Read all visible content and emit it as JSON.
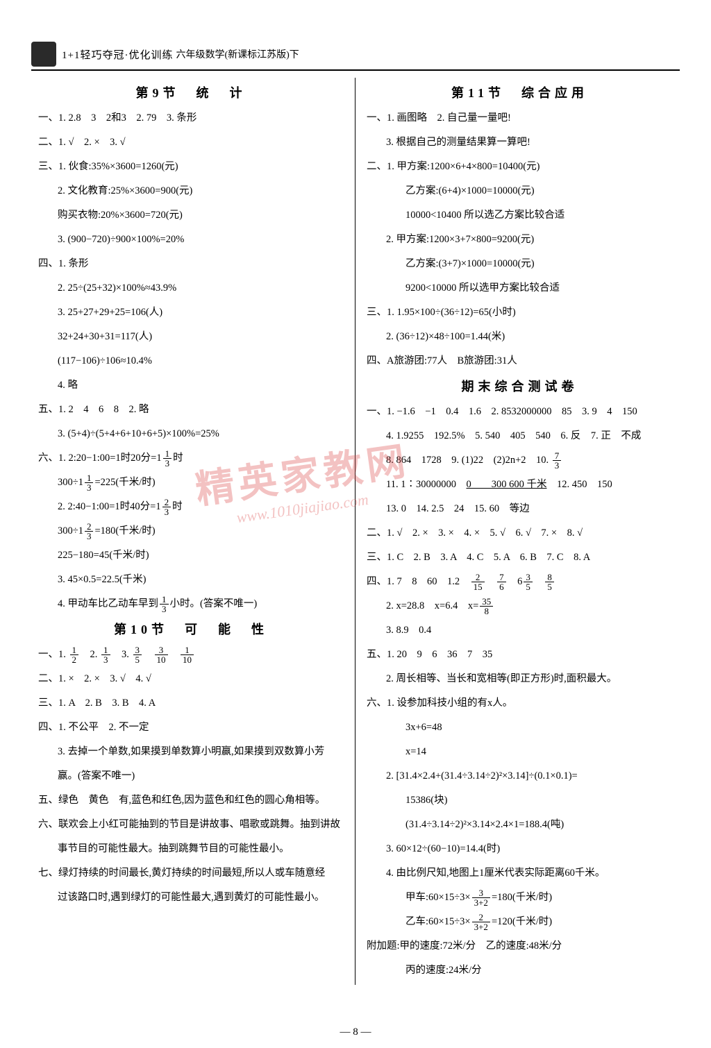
{
  "header": {
    "brand": "1+1轻巧夺冠·优化训练",
    "subtitle": "六年级数学(新课标江苏版)下"
  },
  "left": {
    "sec9_title": "第9节　统　计",
    "l1": "一、1. 2.8　3　2和3　2. 79　3. 条形",
    "l2": "二、1. √　2. ×　3. √",
    "l3": "三、1. 伙食:35%×3600=1260(元)",
    "l4": "2. 文化教育:25%×3600=900(元)",
    "l5": "购买衣物:20%×3600=720(元)",
    "l6": "3. (900−720)÷900×100%=20%",
    "l7": "四、1. 条形",
    "l8": "2. 25÷(25+32)×100%≈43.9%",
    "l9": "3. 25+27+29+25=106(人)",
    "l10": "32+24+30+31=117(人)",
    "l11": "(117−106)÷106≈10.4%",
    "l12": "4. 略",
    "l13": "五、1. 2　4　6　8　2. 略",
    "l14": "3. (5+4)÷(5+4+6+10+6+5)×100%=25%",
    "l15a": "六、1. 2:20−1:00=1时20分=1",
    "l15b": "时",
    "l16a": "300÷1",
    "l16b": "=225(千米/时)",
    "l17a": "2. 2:40−1:00=1时40分=1",
    "l17b": "时",
    "l18a": "300÷1",
    "l18b": "=180(千米/时)",
    "l19": "225−180=45(千米/时)",
    "l20": "3. 45×0.5=22.5(千米)",
    "l21a": "4. 甲动车比乙动车早到",
    "l21b": "小时。(答案不唯一)",
    "sec10_title": "第10节　可　能　性",
    "p1a": "一、1. ",
    "p1b": "　2. ",
    "p1c": "　3. ",
    "p2": "二、1. ×　2. ×　3. √　4. √",
    "p3": "三、1. A　2. B　3. B　4. A",
    "p4": "四、1. 不公平　2. 不一定",
    "p5": "3. 去掉一个单数,如果摸到单数算小明赢,如果摸到双数算小芳",
    "p5b": "赢。(答案不唯一)",
    "p6": "五、绿色　黄色　有,蓝色和红色,因为蓝色和红色的圆心角相等。",
    "p7": "六、联欢会上小红可能抽到的节目是讲故事、唱歌或跳舞。抽到讲故",
    "p7b": "事节目的可能性最大。抽到跳舞节目的可能性最小。",
    "p8": "七、绿灯持续的时间最长,黄灯持续的时间最短,所以人或车随意经",
    "p8b": "过该路口时,遇到绿灯的可能性最大,遇到黄灯的可能性最小。"
  },
  "right": {
    "sec11_title": "第11节　综合应用",
    "r1": "一、1. 画图略　2. 自己量一量吧!",
    "r2": "3. 根据自己的测量结果算一算吧!",
    "r3": "二、1. 甲方案:1200×6+4×800=10400(元)",
    "r4": "乙方案:(6+4)×1000=10000(元)",
    "r5": "10000<10400 所以选乙方案比较合适",
    "r6": "2. 甲方案:1200×3+7×800=9200(元)",
    "r7": "乙方案:(3+7)×1000=10000(元)",
    "r8": "9200<10000 所以选甲方案比较合适",
    "r9": "三、1. 1.95×100÷(36÷12)=65(小时)",
    "r10": "2. (36÷12)×48÷100=1.44(米)",
    "r11": "四、A旅游团:77人　B旅游团:31人",
    "exam_title": "期末综合测试卷",
    "e1": "一、1. −1.6　−1　0.4　1.6　2. 8532000000　85　3. 9　4　150",
    "e2": "4. 1.9255　192.5%　5. 540　405　540　6. 反　7. 正　不成",
    "e3a": "8. 864　1728　9. (1)22　(2)2n+2　10. ",
    "e4a": "11. 1∶30000000　",
    "e4b": "0　　300 600 千米",
    "e4c": "　12. 450　150",
    "e5": "13. 0　14. 2.5　24　15. 60　等边",
    "e6": "二、1. √　2. ×　3. ×　4. ×　5. √　6. √　7. ×　8. √",
    "e7": "三、1. C　2. B　3. A　4. C　5. A　6. B　7. C　8. A",
    "e8a": "四、1. 7　8　60　1.2　",
    "e9a": "2. x=28.8　x=6.4　x=",
    "e10": "3. 8.9　0.4",
    "e11": "五、1. 20　9　6　36　7　35",
    "e12": "2. 周长相等、当长和宽相等(即正方形)时,面积最大。",
    "e13": "六、1. 设参加科技小组的有x人。",
    "e14": "3x+6=48",
    "e15": "x=14",
    "e16": "2. [31.4×2.4+(31.4÷3.14÷2)²×3.14]÷(0.1×0.1)=",
    "e17": "15386(块)",
    "e18": "(31.4÷3.14÷2)²×3.14×2.4×1=188.4(吨)",
    "e19": "3. 60×12÷(60−10)=14.4(时)",
    "e20": "4. 由比例尺知,地图上1厘米代表实际距离60千米。",
    "e21a": "甲车:60×15÷3×",
    "e21b": "=180(千米/时)",
    "e22a": "乙车:60×15÷3×",
    "e22b": "=120(千米/时)",
    "e23": "附加题:甲的速度:72米/分　乙的速度:48米/分",
    "e24": "丙的速度:24米/分"
  },
  "fracs": {
    "f13": {
      "n": "1",
      "d": "3"
    },
    "f23": {
      "n": "2",
      "d": "3"
    },
    "f12": {
      "n": "1",
      "d": "2"
    },
    "f35": {
      "n": "3",
      "d": "5"
    },
    "f310": {
      "n": "3",
      "d": "10"
    },
    "f110": {
      "n": "1",
      "d": "10"
    },
    "f73": {
      "n": "7",
      "d": "3"
    },
    "f215": {
      "n": "2",
      "d": "15"
    },
    "f76": {
      "n": "7",
      "d": "6"
    },
    "f358": {
      "n": "35",
      "d": "8"
    },
    "f332": {
      "n": "3",
      "d": "3+2"
    },
    "f232": {
      "n": "2",
      "d": "3+2"
    },
    "f6_35": {
      "n": "3",
      "d": "5"
    },
    "f85": {
      "n": "8",
      "d": "5"
    }
  },
  "watermark": "精英家教网",
  "watermark_url": "www.1010jiajiao.com",
  "page_num": "— 8 —"
}
